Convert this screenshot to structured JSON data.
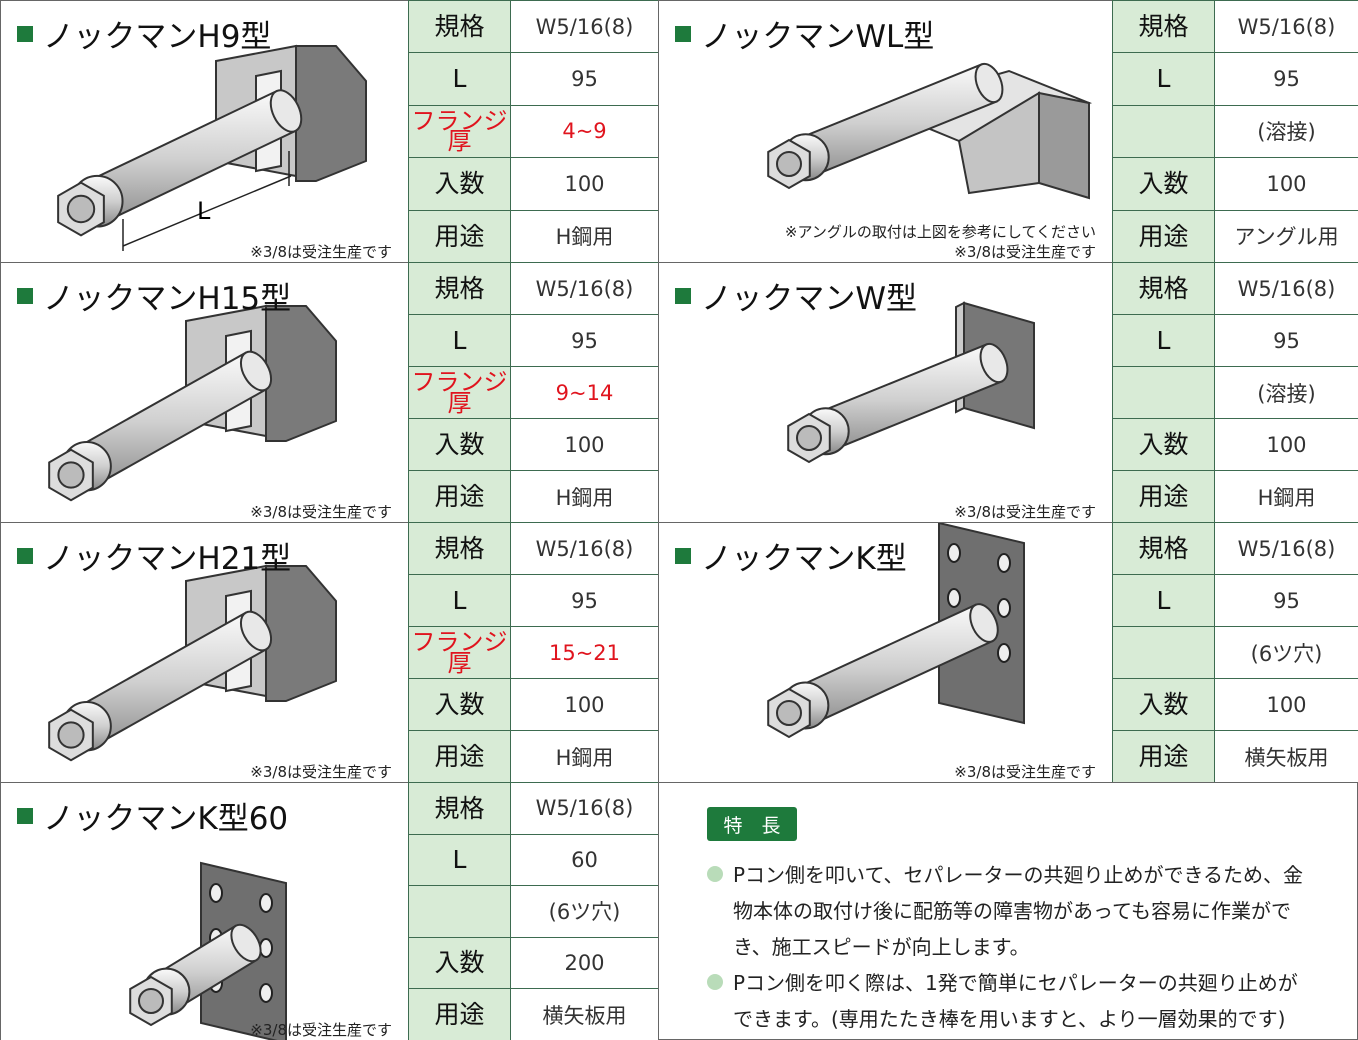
{
  "products": [
    {
      "title": "ノックマンH9型",
      "dimension_label": "L",
      "notes": [
        "※3/8は受注生産です"
      ],
      "specs": [
        {
          "label": "規格",
          "value": "W5/16(8)"
        },
        {
          "label": "L",
          "value": "95"
        },
        {
          "label": "フランジ厚",
          "value": "4~9",
          "highlight": true
        },
        {
          "label": "入数",
          "value": "100"
        },
        {
          "label": "用途",
          "value": "H鋼用"
        }
      ]
    },
    {
      "title": "ノックマンWL型",
      "notes": [
        "※アングルの取付は上図を参考にしてください",
        "※3/8は受注生産です"
      ],
      "specs": [
        {
          "label": "規格",
          "value": "W5/16(8)"
        },
        {
          "label": "L",
          "value": "95"
        },
        {
          "value": "(溶接)"
        },
        {
          "label": "入数",
          "value": "100"
        },
        {
          "label": "用途",
          "value": "アングル用"
        }
      ]
    },
    {
      "title": "ノックマンH15型",
      "notes": [
        "※3/8は受注生産です"
      ],
      "specs": [
        {
          "label": "規格",
          "value": "W5/16(8)"
        },
        {
          "label": "L",
          "value": "95"
        },
        {
          "label": "フランジ厚",
          "value": "9~14",
          "highlight": true
        },
        {
          "label": "入数",
          "value": "100"
        },
        {
          "label": "用途",
          "value": "H鋼用"
        }
      ]
    },
    {
      "title": "ノックマンW型",
      "notes": [
        "※3/8は受注生産です"
      ],
      "specs": [
        {
          "label": "規格",
          "value": "W5/16(8)"
        },
        {
          "label": "L",
          "value": "95"
        },
        {
          "value": "(溶接)"
        },
        {
          "label": "入数",
          "value": "100"
        },
        {
          "label": "用途",
          "value": "H鋼用"
        }
      ]
    },
    {
      "title": "ノックマンH21型",
      "notes": [
        "※3/8は受注生産です"
      ],
      "specs": [
        {
          "label": "規格",
          "value": "W5/16(8)"
        },
        {
          "label": "L",
          "value": "95"
        },
        {
          "label": "フランジ厚",
          "value": "15~21",
          "highlight": true
        },
        {
          "label": "入数",
          "value": "100"
        },
        {
          "label": "用途",
          "value": "H鋼用"
        }
      ]
    },
    {
      "title": "ノックマンK型",
      "notes": [
        "※3/8は受注生産です"
      ],
      "specs": [
        {
          "label": "規格",
          "value": "W5/16(8)"
        },
        {
          "label": "L",
          "value": "95"
        },
        {
          "value": "(6ツ穴)"
        },
        {
          "label": "入数",
          "value": "100"
        },
        {
          "label": "用途",
          "value": "横矢板用"
        }
      ]
    },
    {
      "title": "ノックマンK型60",
      "notes": [
        "※3/8は受注生産です"
      ],
      "specs": [
        {
          "label": "規格",
          "value": "W5/16(8)"
        },
        {
          "label": "L",
          "value": "60"
        },
        {
          "value": "(6ツ穴)"
        },
        {
          "label": "入数",
          "value": "200"
        },
        {
          "label": "用途",
          "value": "横矢板用"
        }
      ]
    }
  ],
  "features": {
    "heading": "特　長",
    "items": [
      "Pコン側を叩いて、セパレーターの共廻り止めができるため、金物本体の取付け後に配筋等の障害物があっても容易に作業ができ、施工スピードが向上します。",
      "Pコン側を叩く際は、1発で簡単にセパレーターの共廻り止めができます。(専用たたき棒を用いますと、より一層効果的です)"
    ]
  }
}
